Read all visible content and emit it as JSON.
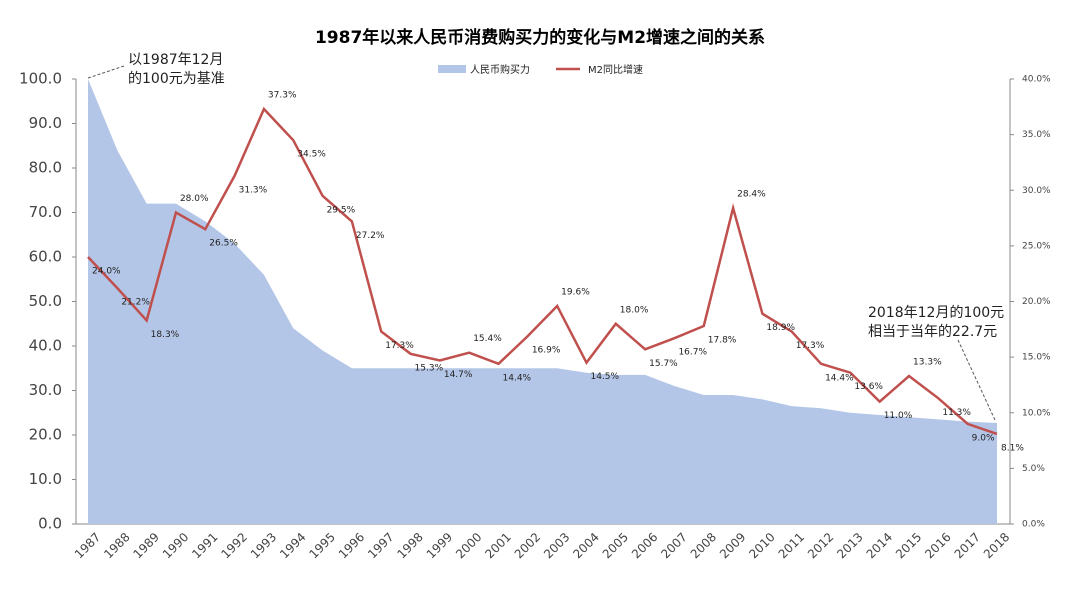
{
  "chart_data": {
    "type": "area-line",
    "title": "1987年以来人民币消费购买力的变化与M2增速之间的关系",
    "categories": [
      "1987",
      "1988",
      "1989",
      "1990",
      "1991",
      "1992",
      "1993",
      "1994",
      "1995",
      "1996",
      "1997",
      "1998",
      "1999",
      "2000",
      "2001",
      "2002",
      "2003",
      "2004",
      "2005",
      "2006",
      "2007",
      "2008",
      "2009",
      "2010",
      "2011",
      "2012",
      "2013",
      "2014",
      "2015",
      "2016",
      "2017",
      "2018"
    ],
    "series": [
      {
        "name": "人民币购买力",
        "type": "area",
        "color": "#b4c6e7",
        "values": [
          100,
          84,
          72,
          72,
          68,
          63,
          56,
          44,
          39,
          35,
          35,
          35,
          35,
          35,
          35,
          35,
          35,
          34,
          33.5,
          33.5,
          31,
          29,
          29,
          28,
          26.5,
          26,
          25,
          24.5,
          24,
          23.5,
          23,
          22.7
        ]
      },
      {
        "name": "M2同比增速",
        "type": "line",
        "axis": "y2",
        "color": "#c0504d",
        "values": [
          24.0,
          21.2,
          18.3,
          28.0,
          26.5,
          31.3,
          37.3,
          34.5,
          29.5,
          27.2,
          17.3,
          15.3,
          14.7,
          15.4,
          14.4,
          16.9,
          19.6,
          14.5,
          18.0,
          15.7,
          16.7,
          17.8,
          28.4,
          18.9,
          17.3,
          14.4,
          13.6,
          11.0,
          13.3,
          11.3,
          9.0,
          8.1
        ],
        "value_labels": [
          "24.0%",
          "21.2%",
          "18.3%",
          "28.0%",
          "26.5%",
          "31.3%",
          "37.3%",
          "34.5%",
          "29.5%",
          "27.2%",
          "17.3%",
          "15.3%",
          "14.7%",
          "15.4%",
          "14.4%",
          "16.9%",
          "19.6%",
          "14.5%",
          "18.0%",
          "15.7%",
          "16.7%",
          "17.8%",
          "28.4%",
          "18.9%",
          "17.3%",
          "14.4%",
          "13.6%",
          "11.0%",
          "13.3%",
          "11.3%",
          "9.0%",
          "8.1%"
        ]
      }
    ],
    "ylim": [
      0,
      100
    ],
    "yticks": [
      {
        "value": 0,
        "label": "0.0"
      },
      {
        "value": 10,
        "label": "10.0"
      },
      {
        "value": 20,
        "label": "20.0"
      },
      {
        "value": 30,
        "label": "30.0"
      },
      {
        "value": 40,
        "label": "40.0"
      },
      {
        "value": 50,
        "label": "50.0"
      },
      {
        "value": 60,
        "label": "60.0"
      },
      {
        "value": 70,
        "label": "70.0"
      },
      {
        "value": 80,
        "label": "80.0"
      },
      {
        "value": 90,
        "label": "90.0"
      },
      {
        "value": 100,
        "label": "100.0"
      }
    ],
    "y2lim": [
      0,
      40
    ],
    "y2ticks": [
      {
        "value": 0,
        "label": "0.0%"
      },
      {
        "value": 5,
        "label": "5.0%"
      },
      {
        "value": 10,
        "label": "10.0%"
      },
      {
        "value": 15,
        "label": "15.0%"
      },
      {
        "value": 20,
        "label": "20.0%"
      },
      {
        "value": 25,
        "label": "25.0%"
      },
      {
        "value": 30,
        "label": "30.0%"
      },
      {
        "value": 35,
        "label": "35.0%"
      },
      {
        "value": 40,
        "label": "40.0%"
      }
    ],
    "annotations": [
      [
        "以1987年12月",
        "的100元为基准"
      ],
      [
        "2018年12月的100元",
        "相当于当年的22.7元"
      ]
    ],
    "legend": "top"
  }
}
